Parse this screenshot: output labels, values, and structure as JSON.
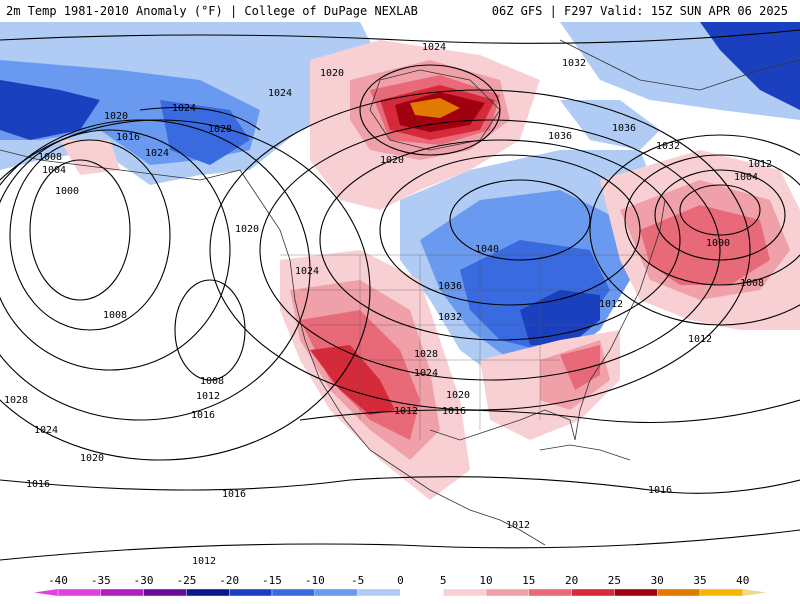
{
  "header": {
    "title": "2m Temp 1981-2010 Anomaly (°F) | College of DuPage NEXLAB",
    "run_info": "06Z GFS | F297 Valid: 15Z SUN APR 06 2025"
  },
  "colors": {
    "neg40": "#e040e0",
    "neg35": "#b020c0",
    "neg30": "#6a0a9a",
    "neg25": "#0a1a8a",
    "neg20": "#1a40c0",
    "neg15": "#3a6ae0",
    "neg10": "#6a9af0",
    "neg5": "#b0ccf5",
    "zero": "#ffffff",
    "pos5": "#f8d0d4",
    "pos10": "#f0a0a8",
    "pos15": "#e86a78",
    "pos20": "#d42a3a",
    "pos25": "#a00010",
    "pos30": "#e07a00",
    "pos35": "#f4b800",
    "pos40": "#f0d890"
  },
  "colorbar": {
    "labels": [
      "-40",
      "-35",
      "-30",
      "-25",
      "-20",
      "-15",
      "-10",
      "-5",
      "0",
      "5",
      "10",
      "15",
      "20",
      "25",
      "30",
      "35",
      "40"
    ]
  },
  "isobars": [
    {
      "text": "1024",
      "key": "a"
    },
    {
      "text": "1020",
      "key": "b"
    },
    {
      "text": "1032",
      "key": "c"
    },
    {
      "text": "1024",
      "key": "d"
    },
    {
      "text": "1024",
      "key": "e"
    },
    {
      "text": "1020",
      "key": "f"
    },
    {
      "text": "1028",
      "key": "g"
    },
    {
      "text": "1016",
      "key": "h"
    },
    {
      "text": "1024",
      "key": "i"
    },
    {
      "text": "1008",
      "key": "j"
    },
    {
      "text": "1004",
      "key": "k"
    },
    {
      "text": "1000",
      "key": "l"
    },
    {
      "text": "1020",
      "key": "m"
    },
    {
      "text": "1036",
      "key": "n"
    },
    {
      "text": "1036",
      "key": "o"
    },
    {
      "text": "1032",
      "key": "p"
    },
    {
      "text": "1012",
      "key": "q"
    },
    {
      "text": "1004",
      "key": "r"
    },
    {
      "text": "1000",
      "key": "s"
    },
    {
      "text": "1040",
      "key": "t"
    },
    {
      "text": "1024",
      "key": "u"
    },
    {
      "text": "1036",
      "key": "v"
    },
    {
      "text": "1012",
      "key": "w"
    },
    {
      "text": "1032",
      "key": "x"
    },
    {
      "text": "1008",
      "key": "y"
    },
    {
      "text": "1012",
      "key": "z"
    },
    {
      "text": "1008",
      "key": "aa"
    },
    {
      "text": "1028",
      "key": "bb"
    },
    {
      "text": "1024",
      "key": "cc"
    },
    {
      "text": "1008",
      "key": "dd"
    },
    {
      "text": "1012",
      "key": "ee"
    },
    {
      "text": "1016",
      "key": "ff"
    },
    {
      "text": "1020",
      "key": "gg"
    },
    {
      "text": "1012",
      "key": "hh"
    },
    {
      "text": "1016",
      "key": "ii"
    },
    {
      "text": "1028",
      "key": "jj"
    },
    {
      "text": "1024",
      "key": "kk"
    },
    {
      "text": "1020",
      "key": "ll"
    },
    {
      "text": "1016",
      "key": "mm"
    },
    {
      "text": "1016",
      "key": "nn"
    },
    {
      "text": "1016",
      "key": "oo"
    },
    {
      "text": "1012",
      "key": "pp"
    },
    {
      "text": "1012",
      "key": "qq"
    },
    {
      "text": "1020",
      "key": "rr"
    }
  ]
}
